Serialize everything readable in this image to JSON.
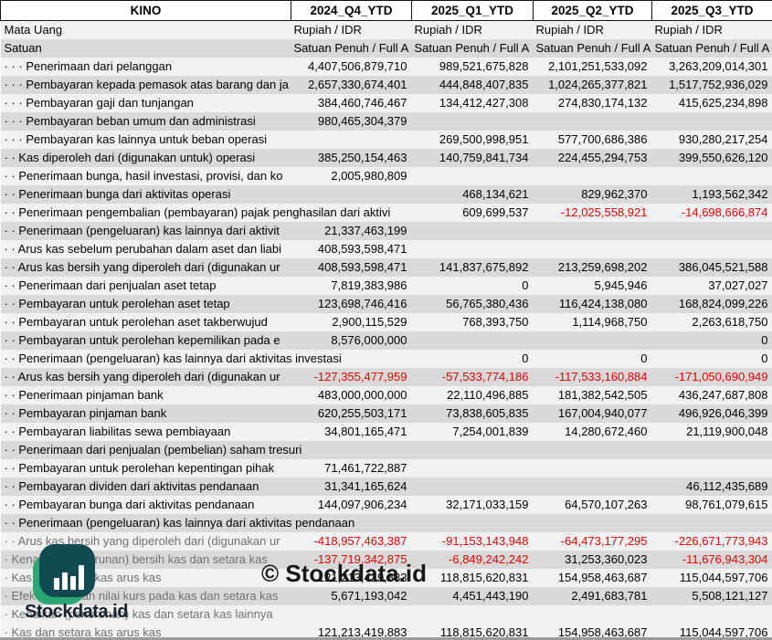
{
  "header": {
    "company": "KINO",
    "periods": [
      "2024_Q4_YTD",
      "2025_Q1_YTD",
      "2025_Q2_YTD",
      "2025_Q3_YTD"
    ]
  },
  "meta_rows": [
    {
      "label": "Mata Uang",
      "values": [
        "Rupiah / IDR",
        "Rupiah / IDR",
        "Rupiah / IDR",
        "Rupiah / IDR"
      ]
    },
    {
      "label": "Satuan",
      "values": [
        "Satuan Penuh / Full A",
        "Satuan Penuh / Full A",
        "Satuan Penuh / Full A",
        "Satuan Penuh / Full A"
      ]
    }
  ],
  "rows": [
    {
      "label": "· · · Penerimaan dari pelanggan",
      "values": [
        "4,407,506,879,710",
        "989,521,675,828",
        "2,101,251,533,092",
        "3,263,209,014,301"
      ]
    },
    {
      "label": "· · · Pembayaran kepada pemasok atas barang dan ja",
      "values": [
        "2,657,330,674,401",
        "444,848,407,835",
        "1,024,265,377,821",
        "1,517,752,936,029"
      ]
    },
    {
      "label": "· · · Pembayaran gaji dan tunjangan",
      "values": [
        "384,460,746,467",
        "134,412,427,308",
        "274,830,174,132",
        "415,625,234,898"
      ]
    },
    {
      "label": "· · · Pembayaran beban umum dan administrasi",
      "values": [
        "980,465,304,379",
        "",
        "",
        ""
      ]
    },
    {
      "label": "· · · Pembayaran kas lainnya untuk beban operasi",
      "values": [
        "",
        "269,500,998,951",
        "577,700,686,386",
        "930,280,217,254"
      ]
    },
    {
      "label": "· · Kas diperoleh dari (digunakan untuk) operasi",
      "values": [
        "385,250,154,463",
        "140,759,841,734",
        "224,455,294,753",
        "399,550,626,120"
      ]
    },
    {
      "label": "· · Penerimaan bunga, hasil investasi, provisi, dan ko",
      "values": [
        "2,005,980,809",
        "",
        "",
        ""
      ]
    },
    {
      "label": "· · Penerimaan bunga dari aktivitas operasi",
      "values": [
        "",
        "468,134,621",
        "829,962,370",
        "1,193,562,342"
      ]
    },
    {
      "label": "· · Penerimaan pengembalian (pembayaran) pajak penghasilan dari aktivi",
      "overflow": true,
      "values": [
        "",
        "609,699,537",
        "-12,025,558,921",
        "-14,698,666,874"
      ]
    },
    {
      "label": "· · Penerimaan (pengeluaran) kas lainnya dari aktivit",
      "values": [
        "21,337,463,199",
        "",
        "",
        ""
      ]
    },
    {
      "label": "· · Arus kas sebelum perubahan dalam aset dan liabi",
      "values": [
        "408,593,598,471",
        "",
        "",
        ""
      ]
    },
    {
      "label": "· · Arus kas bersih yang diperoleh dari (digunakan ur",
      "values": [
        "408,593,598,471",
        "141,837,675,892",
        "213,259,698,202",
        "386,045,521,588"
      ]
    },
    {
      "label": "· · Penerimaan dari penjualan aset tetap",
      "values": [
        "7,819,383,986",
        "0",
        "5,945,946",
        "37,027,027"
      ]
    },
    {
      "label": "· · Pembayaran untuk perolehan aset tetap",
      "values": [
        "123,698,746,416",
        "56,765,380,436",
        "116,424,138,080",
        "168,824,099,226"
      ]
    },
    {
      "label": "· · Pembayaran untuk perolehan aset takberwujud",
      "values": [
        "2,900,115,529",
        "768,393,750",
        "1,114,968,750",
        "2,263,618,750"
      ]
    },
    {
      "label": "· · Pembayaran untuk perolehan kepemilikan pada e",
      "values": [
        "8,576,000,000",
        "",
        "",
        "0"
      ]
    },
    {
      "label": "· · Penerimaan (pengeluaran) kas lainnya dari aktivitas investasi",
      "overflow": true,
      "values": [
        "",
        "0",
        "0",
        "0"
      ]
    },
    {
      "label": "· · Arus kas bersih yang diperoleh dari (digunakan ur",
      "values": [
        "-127,355,477,959",
        "-57,533,774,186",
        "-117,533,160,884",
        "-171,050,690,949"
      ]
    },
    {
      "label": "· · Penerimaan pinjaman bank",
      "values": [
        "483,000,000,000",
        "22,110,496,885",
        "181,382,542,505",
        "436,247,687,808"
      ]
    },
    {
      "label": "· · Pembayaran pinjaman bank",
      "values": [
        "620,255,503,171",
        "73,838,605,835",
        "167,004,940,077",
        "496,926,046,399"
      ]
    },
    {
      "label": "· · Pembayaran liabilitas sewa pembiayaan",
      "values": [
        "34,801,165,471",
        "7,254,001,839",
        "14,280,672,460",
        "21,119,900,048"
      ]
    },
    {
      "label": "· · Penerimaan dari penjualan (pembelian) saham tresuri",
      "overflow": true,
      "values": [
        "",
        "",
        "",
        ""
      ]
    },
    {
      "label": "· · Pembayaran untuk perolehan kepentingan pihak",
      "values": [
        "71,461,722,887",
        "",
        "",
        ""
      ]
    },
    {
      "label": "· · Pembayaran dividen dari aktivitas pendanaan",
      "values": [
        "31,341,165,624",
        "",
        "",
        "46,112,435,689"
      ]
    },
    {
      "label": "· · Pembayaran bunga dari aktivitas pendanaan",
      "values": [
        "144,097,906,234",
        "32,171,033,159",
        "64,570,107,263",
        "98,761,079,615"
      ]
    },
    {
      "label": "· · Penerimaan (pengeluaran) kas lainnya dari aktivitas pendanaan",
      "overflow": true,
      "values": [
        "",
        "",
        "",
        ""
      ]
    },
    {
      "label": "· · Arus kas bersih yang diperoleh dari (digunakan ur",
      "muted": true,
      "values": [
        "-418,957,463,387",
        "-91,153,143,948",
        "-64,473,177,295",
        "-226,671,773,943"
      ]
    },
    {
      "label": "· Kenaikan (penurunan) bersih kas dan setara kas",
      "muted": true,
      "values": [
        "-137,719,342,875",
        "-6,849,242,242",
        "31,253,360,023",
        "-11,676,943,304"
      ]
    },
    {
      "label": "· Kas dan setara kas arus kas",
      "muted": true,
      "values": [
        "121,213,419,883",
        "118,815,620,831",
        "154,958,463,687",
        "115,044,597,706"
      ]
    },
    {
      "label": "· Efek perubahan nilai kurs pada kas dan setara kas",
      "muted": true,
      "values": [
        "5,671,193,042",
        "4,451,443,190",
        "2,491,683,781",
        "5,508,121,127"
      ]
    },
    {
      "label": "· Kenaikan (penurunan) kas dan setara kas lainnya",
      "muted": true,
      "values": [
        "",
        "",
        "",
        ""
      ]
    },
    {
      "label": "· Kas dan setara kas arus kas",
      "muted": true,
      "bg": "light",
      "values": [
        "121,213,419,883",
        "118,815,620,831",
        "154,958,463,687",
        "115,044,597,706"
      ]
    }
  ],
  "branding": {
    "watermark": "© Stockdata.id",
    "logo_text": "Stockdata.id",
    "logo_dark_color": "#114a50",
    "logo_green_color": "#2ba572"
  },
  "colors": {
    "row_light": "#f2f2f2",
    "row_dark": "#d9d9d9",
    "negative": "#e90000",
    "muted_label": "#707070"
  }
}
